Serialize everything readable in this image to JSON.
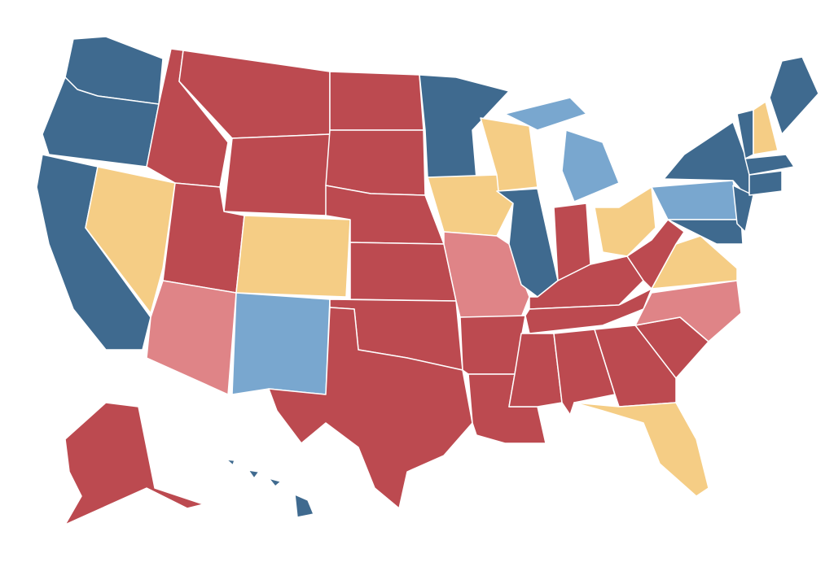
{
  "map": {
    "palette": [
      "#3f6a8f",
      "#79a7cf",
      "#f5cd85",
      "#bc4a50",
      "#df8487"
    ]
  }
}
